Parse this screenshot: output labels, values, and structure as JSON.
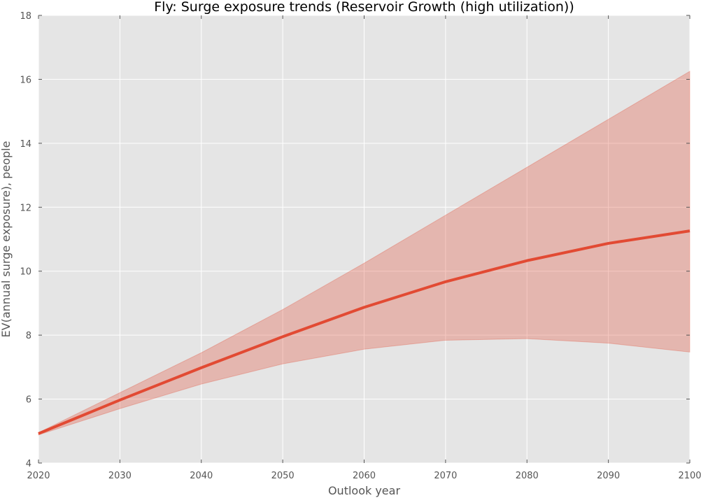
{
  "chart_data": {
    "type": "line",
    "title": "Fly: Surge exposure trends (Reservoir Growth (high utilization))",
    "xlabel": "Outlook year",
    "ylabel": "EV(annual surge exposure), people",
    "xlim": [
      2020,
      2100
    ],
    "ylim": [
      4,
      18
    ],
    "xticks": [
      2020,
      2030,
      2040,
      2050,
      2060,
      2070,
      2080,
      2090,
      2100
    ],
    "yticks": [
      4,
      6,
      8,
      10,
      12,
      14,
      16,
      18
    ],
    "grid": true,
    "legend": "none",
    "series": [
      {
        "x": [
          2020,
          2030,
          2040,
          2050,
          2060,
          2070,
          2080,
          2090,
          2100
        ],
        "values": [
          4.92,
          5.97,
          6.98,
          7.95,
          8.87,
          9.67,
          10.33,
          10.87,
          11.26
        ],
        "band_upper": [
          4.95,
          6.2,
          7.45,
          8.8,
          10.25,
          11.75,
          13.25,
          14.75,
          16.25
        ],
        "band_lower": [
          4.88,
          5.7,
          6.47,
          7.1,
          7.56,
          7.84,
          7.89,
          7.75,
          7.47
        ],
        "color": "#E24A33",
        "band_color": "#E24A33"
      }
    ],
    "style": {
      "plot_background": "#E5E5E5",
      "grid_color": "#FFFFFF"
    }
  }
}
